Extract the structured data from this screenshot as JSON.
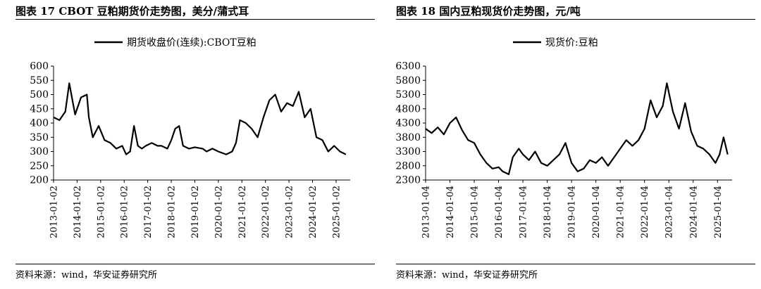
{
  "left": {
    "figure_title": "图表 17 CBOT 豆粕期货价走势图，美分/蒲式耳",
    "source": "资料来源：wind，华安证券研究所",
    "chart_data": {
      "type": "line",
      "legend": "top-center",
      "grid": false,
      "ylim": [
        200,
        600
      ],
      "yticks": [
        "200",
        "250",
        "300",
        "350",
        "400",
        "450",
        "500",
        "550",
        "600"
      ],
      "xticks": [
        "2013-01-02",
        "2014-01-02",
        "2015-01-02",
        "2016-01-02",
        "2017-01-02",
        "2018-01-02",
        "2019-01-02",
        "2020-01-02",
        "2021-01-02",
        "2022-01-02",
        "2023-01-02",
        "2024-01-02",
        "2025-01-02"
      ],
      "series": [
        {
          "name": "期货收盘价(连续):CBOT豆粕",
          "color": "#000000",
          "x": [
            "2013-01",
            "2013-04",
            "2013-07",
            "2013-09",
            "2013-12",
            "2014-03",
            "2014-06",
            "2014-07",
            "2014-09",
            "2014-12",
            "2015-03",
            "2015-06",
            "2015-09",
            "2015-12",
            "2016-02",
            "2016-04",
            "2016-06",
            "2016-08",
            "2016-10",
            "2016-12",
            "2017-03",
            "2017-06",
            "2017-08",
            "2017-11",
            "2018-01",
            "2018-03",
            "2018-05",
            "2018-07",
            "2018-10",
            "2019-01",
            "2019-05",
            "2019-07",
            "2019-10",
            "2020-01",
            "2020-05",
            "2020-08",
            "2020-10",
            "2020-12",
            "2021-03",
            "2021-06",
            "2021-09",
            "2021-12",
            "2022-03",
            "2022-06",
            "2022-09",
            "2022-12",
            "2023-03",
            "2023-06",
            "2023-09",
            "2023-12",
            "2024-03",
            "2024-06",
            "2024-09",
            "2024-12",
            "2025-03",
            "2025-06"
          ],
          "values": [
            420,
            410,
            440,
            540,
            430,
            490,
            500,
            420,
            350,
            390,
            340,
            330,
            310,
            320,
            290,
            300,
            390,
            320,
            310,
            320,
            330,
            320,
            320,
            310,
            340,
            380,
            390,
            320,
            310,
            315,
            310,
            300,
            310,
            300,
            290,
            300,
            330,
            410,
            400,
            380,
            350,
            420,
            480,
            500,
            440,
            470,
            460,
            510,
            420,
            450,
            350,
            340,
            300,
            320,
            300,
            290
          ]
        }
      ]
    }
  },
  "right": {
    "figure_title": "图表 18 国内豆粕现货价走势图，元/吨",
    "source": "资料来源：wind，华安证券研究所",
    "chart_data": {
      "type": "line",
      "legend": "top-center",
      "grid": false,
      "ylim": [
        2300,
        6300
      ],
      "yticks": [
        "2300",
        "2800",
        "3300",
        "3800",
        "4300",
        "4800",
        "5300",
        "5800",
        "6300"
      ],
      "xticks": [
        "2013-01-04",
        "2014-01-04",
        "2015-01-04",
        "2016-01-04",
        "2017-01-04",
        "2018-01-04",
        "2019-01-04",
        "2020-01-04",
        "2021-01-04",
        "2022-01-04",
        "2023-01-04",
        "2024-01-04",
        "2025-01-04"
      ],
      "series": [
        {
          "name": "现货价:豆粕",
          "color": "#000000",
          "x": [
            "2013-01",
            "2013-04",
            "2013-07",
            "2013-10",
            "2014-01",
            "2014-04",
            "2014-07",
            "2014-10",
            "2015-01",
            "2015-04",
            "2015-07",
            "2015-10",
            "2016-01",
            "2016-03",
            "2016-06",
            "2016-08",
            "2016-11",
            "2017-01",
            "2017-04",
            "2017-07",
            "2017-10",
            "2018-01",
            "2018-04",
            "2018-07",
            "2018-10",
            "2019-01",
            "2019-04",
            "2019-07",
            "2019-10",
            "2020-01",
            "2020-04",
            "2020-07",
            "2020-10",
            "2021-01",
            "2021-04",
            "2021-07",
            "2021-10",
            "2022-01",
            "2022-04",
            "2022-07",
            "2022-10",
            "2022-12",
            "2023-03",
            "2023-06",
            "2023-09",
            "2023-12",
            "2024-03",
            "2024-06",
            "2024-09",
            "2024-12",
            "2025-02",
            "2025-04",
            "2025-06"
          ],
          "values": [
            4100,
            3950,
            4150,
            3900,
            4300,
            4500,
            4050,
            3700,
            3600,
            3200,
            2900,
            2700,
            2750,
            2600,
            2500,
            3100,
            3400,
            3200,
            3000,
            3300,
            2900,
            2800,
            3000,
            3200,
            3600,
            2900,
            2600,
            2700,
            3000,
            2900,
            3100,
            2800,
            3100,
            3400,
            3700,
            3500,
            3700,
            4100,
            5100,
            4500,
            4900,
            5700,
            4700,
            4100,
            5000,
            4000,
            3500,
            3400,
            3200,
            2900,
            3200,
            3800,
            3200
          ]
        }
      ]
    }
  }
}
